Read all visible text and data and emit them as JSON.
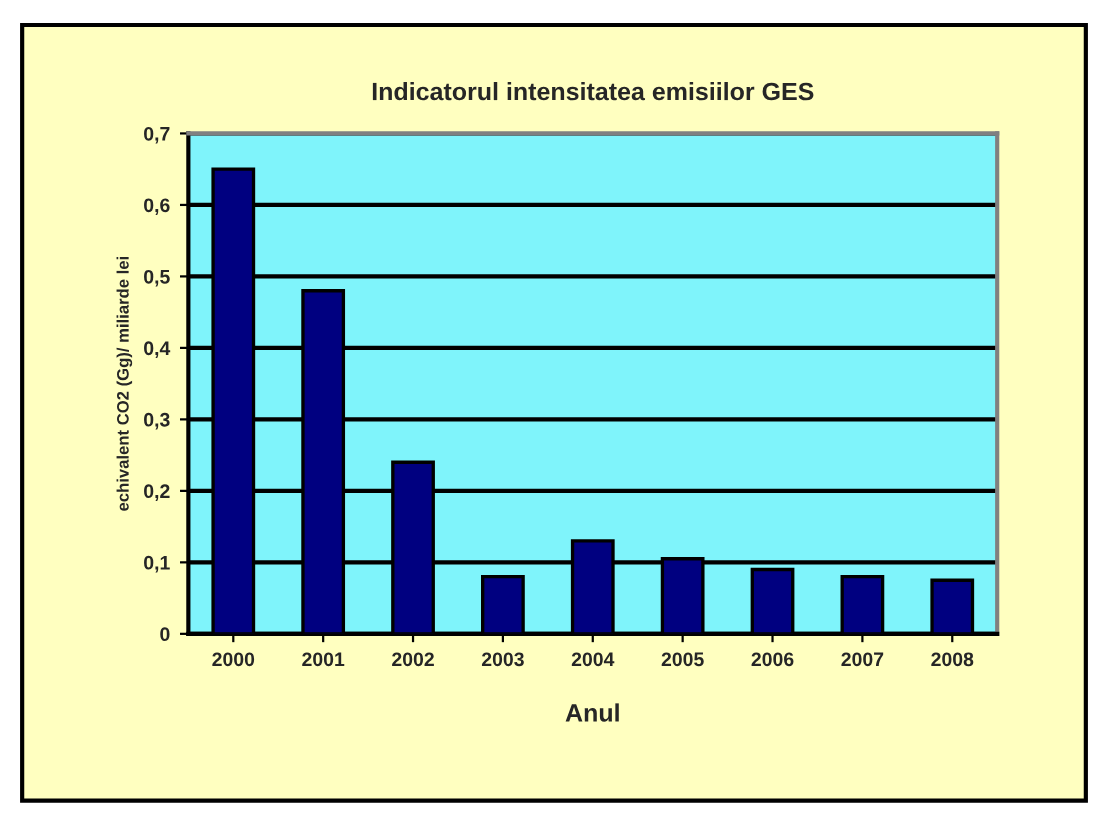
{
  "chart_data": {
    "type": "bar",
    "title": "Indicatorul intensitatea emisiilor GES",
    "xlabel": "Anul",
    "ylabel": "echivalent CO2 (Gg)/ miliarde lei",
    "categories": [
      "2000",
      "2001",
      "2002",
      "2003",
      "2004",
      "2005",
      "2006",
      "2007",
      "2008"
    ],
    "values": [
      0.65,
      0.48,
      0.24,
      0.08,
      0.13,
      0.105,
      0.09,
      0.08,
      0.075
    ],
    "color": "#000080",
    "ylim": [
      0,
      0.7
    ],
    "yticks": [
      {
        "value": 0,
        "label": "0"
      },
      {
        "value": 0.1,
        "label": "0,1"
      },
      {
        "value": 0.2,
        "label": "0,2"
      },
      {
        "value": 0.3,
        "label": "0,3"
      },
      {
        "value": 0.4,
        "label": "0,4"
      },
      {
        "value": 0.5,
        "label": "0,5"
      },
      {
        "value": 0.6,
        "label": "0,6"
      },
      {
        "value": 0.7,
        "label": "0,7"
      }
    ],
    "grid": "y"
  }
}
